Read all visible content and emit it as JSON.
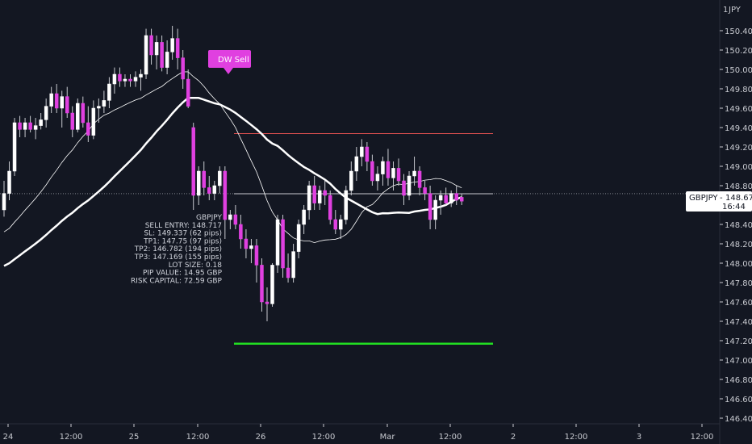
{
  "chart_data": {
    "type": "candlestick",
    "symbol": "GBPJPY",
    "currency": "JPY",
    "currency_top_char": "1",
    "y_ticks": [
      "150.400",
      "150.200",
      "150.000",
      "149.800",
      "149.600",
      "149.400",
      "149.200",
      "149.000",
      "148.800",
      "148.600",
      "148.400",
      "148.200",
      "148.000",
      "147.800",
      "147.600",
      "147.400",
      "147.200",
      "147.000",
      "146.800",
      "146.600",
      "146.400"
    ],
    "x_ticks": [
      "24",
      "12:00",
      "25",
      "12:00",
      "26",
      "12:00",
      "Mar",
      "12:00",
      "2",
      "12:00",
      "3",
      "12:00"
    ],
    "ylim": [
      146.3,
      150.6
    ],
    "current_price": {
      "label": "GBPJPY",
      "value": "148.675",
      "countdown": "16:44"
    },
    "signal": {
      "label": "DW Sell",
      "color": "#e040e0"
    },
    "trade_info": [
      "GBPJPY",
      "SELL ENTRY: 148.717",
      "SL: 149.337 (62 pips)",
      "TP1: 147.75 (97 pips)",
      "TP2: 146.782 (194 pips)",
      "TP3: 147.169 (155 pips)",
      "LOT SIZE: 0.18",
      "PIP VALUE: 14.95 GBP",
      "RISK CAPITAL: 72.59 GBP"
    ],
    "levels": {
      "stop_loss": 149.337,
      "entry": 148.717,
      "take_profit": 147.169
    },
    "colors": {
      "background": "#131722",
      "bull": "#ffffff",
      "bear": "#e040e0",
      "wick": "#c8cad0",
      "stop_loss": "#e05050",
      "entry": "#c8cad0",
      "take_profit": "#22dd22",
      "ma_slow": "#ffffff",
      "ma_fast": "#ffffff"
    },
    "candles": [
      {
        "o": 148.55,
        "h": 148.85,
        "l": 148.48,
        "c": 148.72
      },
      {
        "o": 148.72,
        "h": 149.05,
        "l": 148.65,
        "c": 148.95
      },
      {
        "o": 148.95,
        "h": 149.5,
        "l": 148.9,
        "c": 149.45
      },
      {
        "o": 149.45,
        "h": 149.52,
        "l": 149.3,
        "c": 149.38
      },
      {
        "o": 149.38,
        "h": 149.5,
        "l": 149.3,
        "c": 149.45
      },
      {
        "o": 149.45,
        "h": 149.52,
        "l": 149.35,
        "c": 149.38
      },
      {
        "o": 149.38,
        "h": 149.5,
        "l": 149.28,
        "c": 149.42
      },
      {
        "o": 149.42,
        "h": 149.55,
        "l": 149.38,
        "c": 149.48
      },
      {
        "o": 149.48,
        "h": 149.7,
        "l": 149.4,
        "c": 149.62
      },
      {
        "o": 149.62,
        "h": 149.82,
        "l": 149.55,
        "c": 149.75
      },
      {
        "o": 149.75,
        "h": 149.85,
        "l": 149.55,
        "c": 149.6
      },
      {
        "o": 149.6,
        "h": 149.78,
        "l": 149.4,
        "c": 149.72
      },
      {
        "o": 149.72,
        "h": 149.82,
        "l": 149.5,
        "c": 149.55
      },
      {
        "o": 149.55,
        "h": 149.62,
        "l": 149.3,
        "c": 149.38
      },
      {
        "o": 149.38,
        "h": 149.7,
        "l": 149.35,
        "c": 149.65
      },
      {
        "o": 149.65,
        "h": 149.72,
        "l": 149.4,
        "c": 149.45
      },
      {
        "o": 149.45,
        "h": 149.62,
        "l": 149.25,
        "c": 149.32
      },
      {
        "o": 149.32,
        "h": 149.68,
        "l": 149.28,
        "c": 149.6
      },
      {
        "o": 149.6,
        "h": 149.7,
        "l": 149.45,
        "c": 149.62
      },
      {
        "o": 149.62,
        "h": 149.78,
        "l": 149.55,
        "c": 149.68
      },
      {
        "o": 149.68,
        "h": 149.92,
        "l": 149.6,
        "c": 149.85
      },
      {
        "o": 149.85,
        "h": 150.02,
        "l": 149.75,
        "c": 149.95
      },
      {
        "o": 149.95,
        "h": 150.02,
        "l": 149.82,
        "c": 149.88
      },
      {
        "o": 149.88,
        "h": 149.95,
        "l": 149.82,
        "c": 149.9
      },
      {
        "o": 149.9,
        "h": 149.95,
        "l": 149.82,
        "c": 149.88
      },
      {
        "o": 149.88,
        "h": 149.98,
        "l": 149.82,
        "c": 149.92
      },
      {
        "o": 149.92,
        "h": 150.0,
        "l": 149.78,
        "c": 149.95
      },
      {
        "o": 149.95,
        "h": 150.42,
        "l": 149.9,
        "c": 150.35
      },
      {
        "o": 150.35,
        "h": 150.42,
        "l": 150.05,
        "c": 150.15
      },
      {
        "o": 150.15,
        "h": 150.35,
        "l": 150.0,
        "c": 150.28
      },
      {
        "o": 150.28,
        "h": 150.35,
        "l": 149.98,
        "c": 150.02
      },
      {
        "o": 150.02,
        "h": 150.3,
        "l": 149.95,
        "c": 150.18
      },
      {
        "o": 150.18,
        "h": 150.45,
        "l": 150.1,
        "c": 150.32
      },
      {
        "o": 150.32,
        "h": 150.42,
        "l": 150.0,
        "c": 150.12
      },
      {
        "o": 150.12,
        "h": 150.2,
        "l": 149.8,
        "c": 149.9
      },
      {
        "o": 149.9,
        "h": 150.0,
        "l": 149.6,
        "c": 149.62
      },
      {
        "o": 149.4,
        "h": 149.45,
        "l": 148.55,
        "c": 148.7
      },
      {
        "o": 148.7,
        "h": 149.0,
        "l": 148.6,
        "c": 148.95
      },
      {
        "o": 148.95,
        "h": 149.05,
        "l": 148.7,
        "c": 148.78
      },
      {
        "o": 148.78,
        "h": 148.9,
        "l": 148.65,
        "c": 148.72
      },
      {
        "o": 148.72,
        "h": 148.85,
        "l": 148.65,
        "c": 148.8
      },
      {
        "o": 148.8,
        "h": 149.0,
        "l": 148.72,
        "c": 148.95
      },
      {
        "o": 148.95,
        "h": 149.0,
        "l": 148.25,
        "c": 148.45
      },
      {
        "o": 148.45,
        "h": 148.55,
        "l": 148.35,
        "c": 148.5
      },
      {
        "o": 148.5,
        "h": 148.6,
        "l": 148.35,
        "c": 148.4
      },
      {
        "o": 148.4,
        "h": 148.5,
        "l": 148.15,
        "c": 148.25
      },
      {
        "o": 148.25,
        "h": 148.35,
        "l": 148.05,
        "c": 148.15
      },
      {
        "o": 148.15,
        "h": 148.25,
        "l": 148.0,
        "c": 148.18
      },
      {
        "o": 148.18,
        "h": 148.25,
        "l": 147.8,
        "c": 147.98
      },
      {
        "o": 147.98,
        "h": 148.05,
        "l": 147.5,
        "c": 147.6
      },
      {
        "o": 147.6,
        "h": 147.75,
        "l": 147.4,
        "c": 147.58
      },
      {
        "o": 147.58,
        "h": 148.0,
        "l": 147.55,
        "c": 147.98
      },
      {
        "o": 147.98,
        "h": 148.5,
        "l": 147.9,
        "c": 148.45
      },
      {
        "o": 148.45,
        "h": 148.5,
        "l": 147.85,
        "c": 147.95
      },
      {
        "o": 147.95,
        "h": 148.1,
        "l": 147.8,
        "c": 147.85
      },
      {
        "o": 147.85,
        "h": 148.2,
        "l": 147.8,
        "c": 148.12
      },
      {
        "o": 148.12,
        "h": 148.45,
        "l": 148.05,
        "c": 148.4
      },
      {
        "o": 148.4,
        "h": 148.6,
        "l": 148.3,
        "c": 148.55
      },
      {
        "o": 148.55,
        "h": 148.85,
        "l": 148.45,
        "c": 148.8
      },
      {
        "o": 148.8,
        "h": 148.9,
        "l": 148.55,
        "c": 148.62
      },
      {
        "o": 148.62,
        "h": 148.8,
        "l": 148.55,
        "c": 148.75
      },
      {
        "o": 148.75,
        "h": 148.85,
        "l": 148.6,
        "c": 148.7
      },
      {
        "o": 148.7,
        "h": 148.75,
        "l": 148.4,
        "c": 148.45
      },
      {
        "o": 148.45,
        "h": 148.55,
        "l": 148.3,
        "c": 148.35
      },
      {
        "o": 148.35,
        "h": 148.5,
        "l": 148.25,
        "c": 148.45
      },
      {
        "o": 148.45,
        "h": 148.8,
        "l": 148.4,
        "c": 148.75
      },
      {
        "o": 148.75,
        "h": 149.05,
        "l": 148.7,
        "c": 148.95
      },
      {
        "o": 148.95,
        "h": 149.2,
        "l": 148.85,
        "c": 149.1
      },
      {
        "o": 149.1,
        "h": 149.28,
        "l": 149.0,
        "c": 149.2
      },
      {
        "o": 149.2,
        "h": 149.25,
        "l": 148.95,
        "c": 149.05
      },
      {
        "o": 149.05,
        "h": 149.12,
        "l": 148.8,
        "c": 148.85
      },
      {
        "o": 148.85,
        "h": 149.0,
        "l": 148.75,
        "c": 148.92
      },
      {
        "o": 148.92,
        "h": 149.1,
        "l": 148.8,
        "c": 149.05
      },
      {
        "o": 149.05,
        "h": 149.18,
        "l": 148.8,
        "c": 148.88
      },
      {
        "o": 148.88,
        "h": 149.05,
        "l": 148.75,
        "c": 148.98
      },
      {
        "o": 148.98,
        "h": 149.08,
        "l": 148.8,
        "c": 148.85
      },
      {
        "o": 148.85,
        "h": 148.92,
        "l": 148.6,
        "c": 148.7
      },
      {
        "o": 148.7,
        "h": 148.95,
        "l": 148.65,
        "c": 148.9
      },
      {
        "o": 148.9,
        "h": 149.1,
        "l": 148.8,
        "c": 148.95
      },
      {
        "o": 148.95,
        "h": 149.0,
        "l": 148.7,
        "c": 148.78
      },
      {
        "o": 148.78,
        "h": 148.85,
        "l": 148.65,
        "c": 148.72
      },
      {
        "o": 148.72,
        "h": 148.8,
        "l": 148.35,
        "c": 148.45
      },
      {
        "o": 148.45,
        "h": 148.7,
        "l": 148.35,
        "c": 148.65
      },
      {
        "o": 148.65,
        "h": 148.75,
        "l": 148.5,
        "c": 148.7
      },
      {
        "o": 148.7,
        "h": 148.78,
        "l": 148.6,
        "c": 148.62
      },
      {
        "o": 148.62,
        "h": 148.75,
        "l": 148.58,
        "c": 148.72
      },
      {
        "o": 148.72,
        "h": 148.8,
        "l": 148.6,
        "c": 148.65
      },
      {
        "o": 148.68,
        "h": 148.72,
        "l": 148.6,
        "c": 148.64
      }
    ]
  }
}
